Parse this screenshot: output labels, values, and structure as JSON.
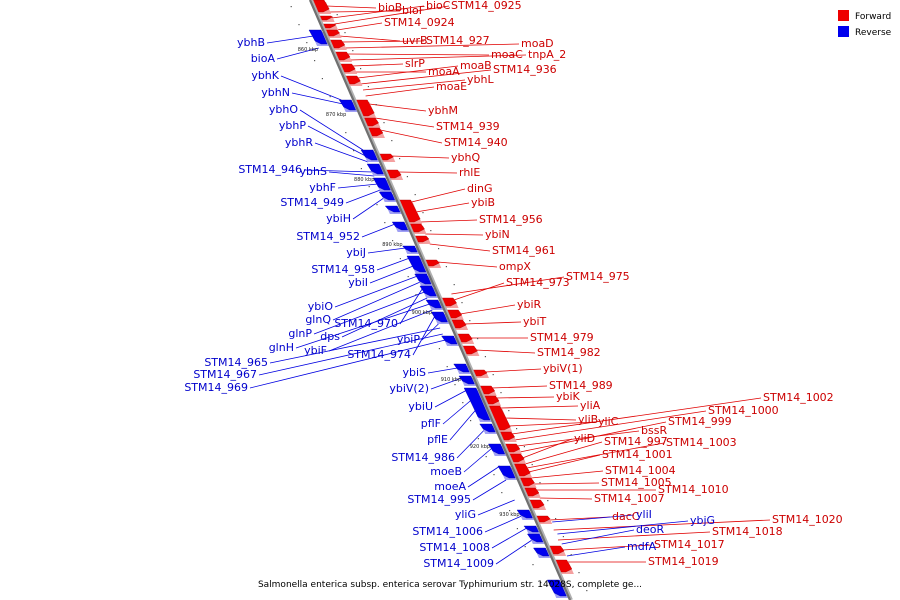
{
  "caption": "Salmonella enterica subsp. enterica serovar Typhimurium str. 14028S, complete ge...",
  "legend": [
    {
      "label": "Forward",
      "color": "#ee0000"
    },
    {
      "label": "Reverse",
      "color": "#0000ee"
    }
  ],
  "ticks": [
    "860 kbp",
    "870 kbp",
    "880 kbp",
    "890 kbp",
    "900 kbp",
    "910 kbp",
    "920 kbp",
    "930 kbp"
  ],
  "forward_genes": [
    "bioB",
    "bioF",
    "bioC",
    "STM14_0925",
    "STM14_0924",
    "uvrB",
    "STM14_927",
    "moaD",
    "moaC",
    "tnpA_2",
    "slrP",
    "moaA",
    "moaB",
    "STM14_936",
    "ybhL",
    "moaE",
    "ybhM",
    "STM14_939",
    "STM14_940",
    "ybhQ",
    "rhlE",
    "dinG",
    "ybiB",
    "STM14_956",
    "ybiN",
    "STM14_961",
    "ompX",
    "STM14_975",
    "STM14_973",
    "ybiR",
    "ybiT",
    "STM14_979",
    "STM14_982",
    "ybiV(1)",
    "STM14_989",
    "ybiK",
    "yliA",
    "yliB",
    "yliC",
    "STM14_1002",
    "STM14_1000",
    "bssR",
    "STM14_999",
    "yliD",
    "STM14_997",
    "STM14_1003",
    "STM14_1001",
    "STM14_1004",
    "STM14_1005",
    "STM14_1010",
    "STM14_1007",
    "dacC",
    "STM14_1020",
    "STM14_1018",
    "STM14_1017",
    "STM14_1019"
  ],
  "reverse_genes": [
    "ybhB",
    "bioA",
    "ybhK",
    "ybhN",
    "ybhO",
    "ybhP",
    "ybhR",
    "STM14_946",
    "ybhS",
    "ybhF",
    "STM14_949",
    "ybiH",
    "STM14_952",
    "ybiJ",
    "STM14_958",
    "ybiI",
    "ybiO",
    "glnQ",
    "STM14_970",
    "glnP",
    "dps",
    "glnH",
    "ybiF",
    "STM14_974",
    "ybiP",
    "STM14_965",
    "STM14_967",
    "STM14_969",
    "ybiS",
    "ybiV(2)",
    "ybiU",
    "pflF",
    "pflE",
    "STM14_986",
    "moeB",
    "moeA",
    "STM14_995",
    "yliG",
    "STM14_1006",
    "STM14_1008",
    "STM14_1009",
    "yliI",
    "ybjG",
    "deoR",
    "mdfA"
  ]
}
